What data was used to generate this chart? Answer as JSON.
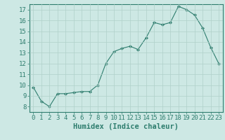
{
  "x": [
    0,
    1,
    2,
    3,
    4,
    5,
    6,
    7,
    8,
    9,
    10,
    11,
    12,
    13,
    14,
    15,
    16,
    17,
    18,
    19,
    20,
    21,
    22,
    23
  ],
  "y": [
    9.8,
    8.5,
    8.0,
    9.2,
    9.2,
    9.3,
    9.4,
    9.4,
    10.0,
    12.0,
    13.1,
    13.4,
    13.6,
    13.3,
    14.4,
    15.8,
    15.6,
    15.8,
    17.3,
    17.0,
    16.5,
    15.3,
    13.5,
    12.0
  ],
  "line_color": "#2e7d6e",
  "marker": "D",
  "marker_size": 2.2,
  "bg_color": "#cde8e4",
  "grid_color": "#b0d0ca",
  "xlabel": "Humidex (Indice chaleur)",
  "xlim": [
    -0.5,
    23.5
  ],
  "ylim": [
    7.5,
    17.5
  ],
  "yticks": [
    8,
    9,
    10,
    11,
    12,
    13,
    14,
    15,
    16,
    17
  ],
  "xticks": [
    0,
    1,
    2,
    3,
    4,
    5,
    6,
    7,
    8,
    9,
    10,
    11,
    12,
    13,
    14,
    15,
    16,
    17,
    18,
    19,
    20,
    21,
    22,
    23
  ],
  "tick_color": "#2e7d6e",
  "label_color": "#2e7d6e",
  "xlabel_fontsize": 7.5,
  "tick_fontsize": 6.5
}
